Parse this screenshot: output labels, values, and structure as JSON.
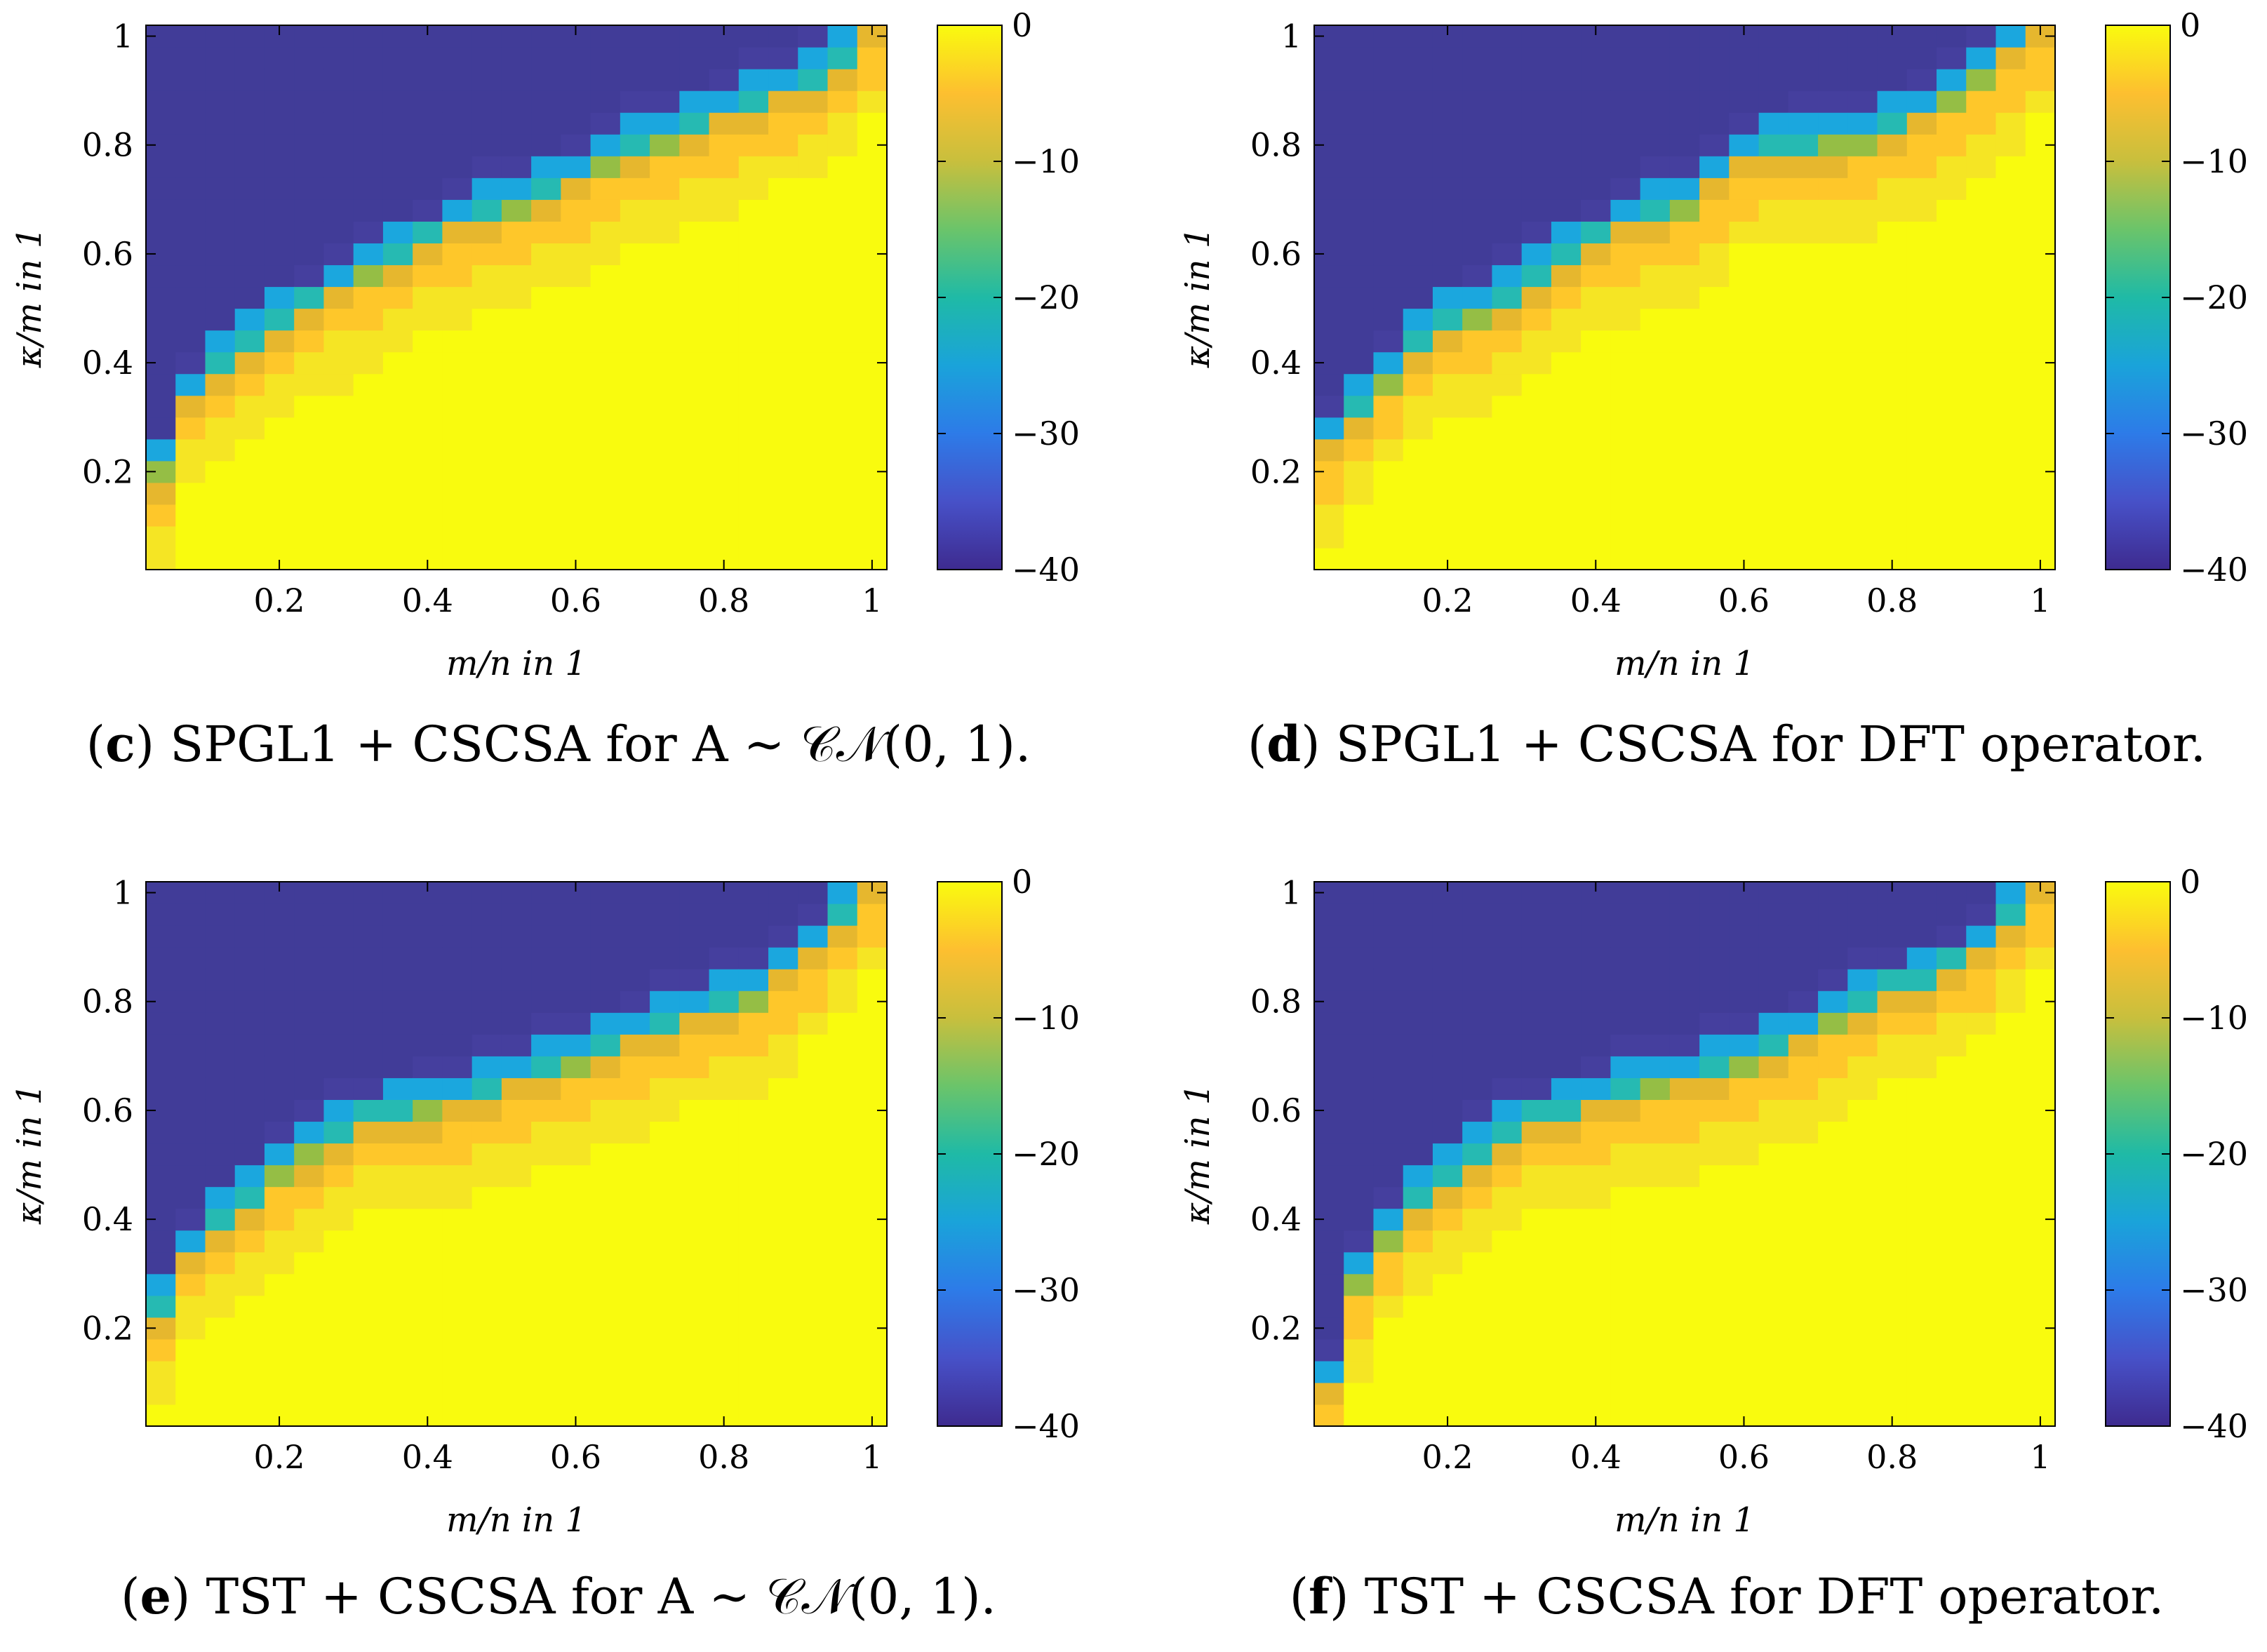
{
  "figure": {
    "panels": [
      {
        "caption_letter": "c",
        "caption_text": "SPGL1 + CSCSA for A ∼ 𝒞𝒩(0, 1)."
      },
      {
        "caption_letter": "d",
        "caption_text": "SPGL1 + CSCSA for DFT operator."
      },
      {
        "caption_letter": "e",
        "caption_text": "TST + CSCSA for A ∼ 𝒞𝒩(0, 1)."
      },
      {
        "caption_letter": "f",
        "caption_text": "TST + CSCSA for DFT operator."
      }
    ]
  },
  "chart_data": [
    {
      "type": "heatmap",
      "xlabel": "m/n in 1",
      "ylabel": "κ/m in 1",
      "x_ticks": [
        0.2,
        0.4,
        0.6,
        0.8,
        1
      ],
      "y_ticks": [
        0.2,
        0.4,
        0.6,
        0.8,
        1
      ],
      "xlim": [
        0.02,
        1.02
      ],
      "ylim": [
        0.02,
        1.02
      ],
      "grid": [
        25,
        25
      ],
      "colorbar": {
        "ticks": [
          0,
          -10,
          -20,
          -30,
          -40
        ],
        "range": [
          -40,
          0
        ],
        "colormap": "parula"
      },
      "colors": [
        "#F9FB0E",
        "#FEC72A",
        "#E6B72E",
        "#95BE45",
        "#26BAB2",
        "#1BA7DE",
        "#3D6CD1",
        "#403A99",
        "#413C98"
      ],
      "phase_boundary": {
        "x": [
          0.04,
          0.08,
          0.12,
          0.16,
          0.2,
          0.28,
          0.36,
          0.44,
          0.52,
          0.6,
          0.68,
          0.76,
          0.84,
          0.92,
          0.96,
          1.0
        ],
        "y": [
          0.2,
          0.34,
          0.4,
          0.44,
          0.48,
          0.54,
          0.6,
          0.66,
          0.7,
          0.74,
          0.8,
          0.84,
          0.88,
          0.92,
          0.96,
          1.02
        ]
      }
    },
    {
      "type": "heatmap",
      "xlabel": "m/n in 1",
      "ylabel": "κ/m in 1",
      "x_ticks": [
        0.2,
        0.4,
        0.6,
        0.8,
        1
      ],
      "y_ticks": [
        0.2,
        0.4,
        0.6,
        0.8,
        1
      ],
      "xlim": [
        0.02,
        1.02
      ],
      "ylim": [
        0.02,
        1.02
      ],
      "grid": [
        25,
        25
      ],
      "colorbar": {
        "ticks": [
          0,
          -10,
          -20,
          -30,
          -40
        ],
        "range": [
          -40,
          0
        ],
        "colormap": "parula"
      },
      "phase_boundary": {
        "x": [
          0.04,
          0.08,
          0.12,
          0.16,
          0.2,
          0.28,
          0.36,
          0.44,
          0.52,
          0.6,
          0.68,
          0.76,
          0.84,
          0.92,
          0.96,
          1.0
        ],
        "y": [
          0.26,
          0.32,
          0.38,
          0.44,
          0.48,
          0.52,
          0.6,
          0.66,
          0.7,
          0.78,
          0.8,
          0.82,
          0.86,
          0.94,
          0.98,
          1.02
        ]
      }
    },
    {
      "type": "heatmap",
      "xlabel": "m/n in 1",
      "ylabel": "κ/m in 1",
      "x_ticks": [
        0.2,
        0.4,
        0.6,
        0.8,
        1
      ],
      "y_ticks": [
        0.2,
        0.4,
        0.6,
        0.8,
        1
      ],
      "xlim": [
        0.02,
        1.02
      ],
      "ylim": [
        0.02,
        1.02
      ],
      "grid": [
        25,
        25
      ],
      "colorbar": {
        "ticks": [
          0,
          -10,
          -20,
          -30,
          -40
        ],
        "range": [
          -40,
          0
        ],
        "colormap": "parula"
      },
      "phase_boundary": {
        "x": [
          0.04,
          0.08,
          0.12,
          0.16,
          0.2,
          0.28,
          0.36,
          0.44,
          0.52,
          0.6,
          0.68,
          0.76,
          0.84,
          0.92,
          0.96,
          1.0
        ],
        "y": [
          0.24,
          0.34,
          0.4,
          0.44,
          0.5,
          0.56,
          0.6,
          0.62,
          0.66,
          0.7,
          0.74,
          0.78,
          0.82,
          0.9,
          0.96,
          1.02
        ]
      }
    },
    {
      "type": "heatmap",
      "xlabel": "m/n in 1",
      "ylabel": "κ/m in 1",
      "x_ticks": [
        0.2,
        0.4,
        0.6,
        0.8,
        1
      ],
      "y_ticks": [
        0.2,
        0.4,
        0.6,
        0.8,
        1
      ],
      "xlim": [
        0.02,
        1.02
      ],
      "ylim": [
        0.02,
        1.02
      ],
      "grid": [
        25,
        25
      ],
      "colorbar": {
        "ticks": [
          0,
          -10,
          -20,
          -30,
          -40
        ],
        "range": [
          -40,
          0
        ],
        "colormap": "parula"
      },
      "phase_boundary": {
        "x": [
          0.04,
          0.08,
          0.12,
          0.16,
          0.2,
          0.28,
          0.36,
          0.44,
          0.52,
          0.6,
          0.68,
          0.76,
          0.84,
          0.92,
          0.96,
          1.0
        ],
        "y": [
          0.1,
          0.3,
          0.38,
          0.44,
          0.48,
          0.56,
          0.6,
          0.64,
          0.66,
          0.7,
          0.74,
          0.8,
          0.84,
          0.9,
          0.96,
          1.02
        ]
      }
    }
  ]
}
